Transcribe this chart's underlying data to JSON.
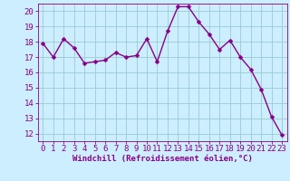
{
  "x": [
    0,
    1,
    2,
    3,
    4,
    5,
    6,
    7,
    8,
    9,
    10,
    11,
    12,
    13,
    14,
    15,
    16,
    17,
    18,
    19,
    20,
    21,
    22,
    23
  ],
  "y": [
    17.9,
    17.0,
    18.2,
    17.6,
    16.6,
    16.7,
    16.8,
    17.3,
    17.0,
    17.1,
    18.2,
    16.7,
    18.7,
    20.3,
    20.3,
    19.3,
    18.5,
    17.5,
    18.1,
    17.0,
    16.2,
    14.9,
    13.1,
    11.9
  ],
  "line_color": "#880088",
  "marker_color": "#880088",
  "bg_color": "#cceeff",
  "grid_color": "#99cccc",
  "xlabel": "Windchill (Refroidissement éolien,°C)",
  "ylim": [
    11.5,
    20.5
  ],
  "xlim": [
    -0.5,
    23.5
  ],
  "yticks": [
    12,
    13,
    14,
    15,
    16,
    17,
    18,
    19,
    20
  ],
  "xticks": [
    0,
    1,
    2,
    3,
    4,
    5,
    6,
    7,
    8,
    9,
    10,
    11,
    12,
    13,
    14,
    15,
    16,
    17,
    18,
    19,
    20,
    21,
    22,
    23
  ],
  "tick_color": "#880088",
  "xlabel_color": "#880088",
  "xlabel_fontsize": 6.5,
  "tick_fontsize": 6.5,
  "line_width": 1.0,
  "marker_size": 2.5
}
